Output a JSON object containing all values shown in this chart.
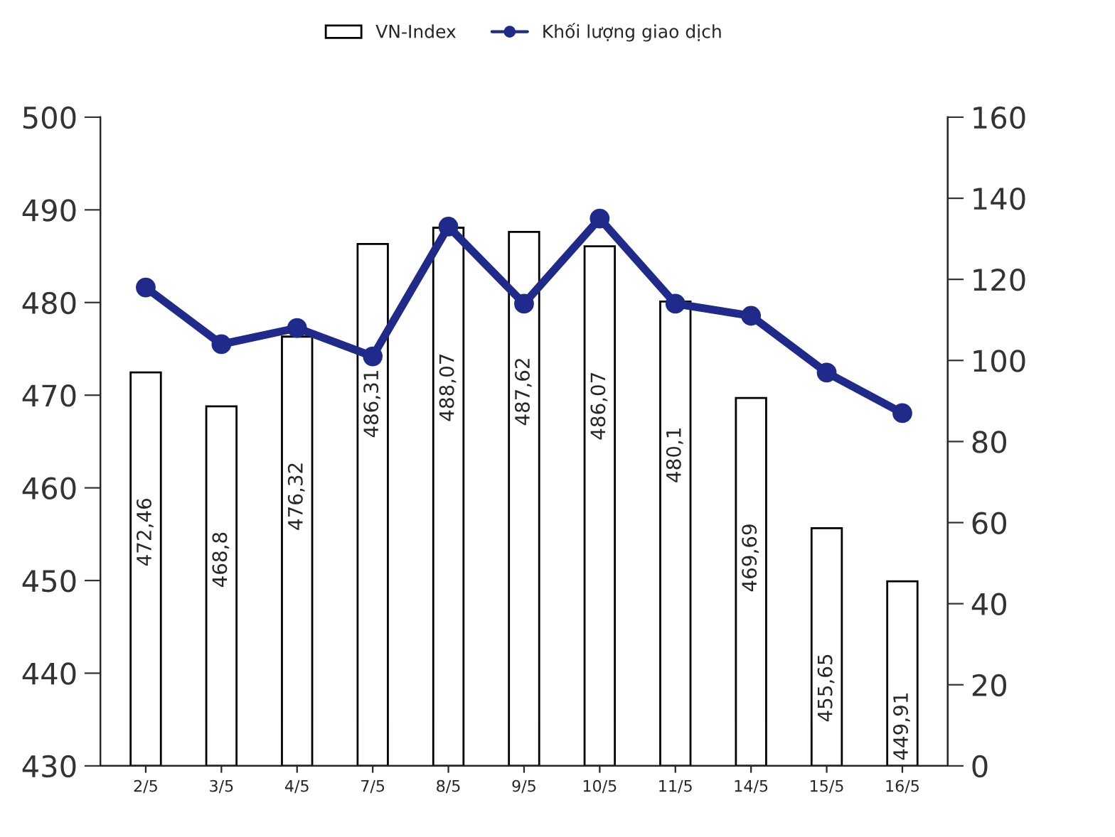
{
  "chart_data": {
    "type": "bar",
    "categories": [
      "2/5",
      "3/5",
      "4/5",
      "7/5",
      "8/5",
      "9/5",
      "10/5",
      "11/5",
      "14/5",
      "15/5",
      "16/5"
    ],
    "series": [
      {
        "name": "VN-Index",
        "color": "#ffffff",
        "values": [
          472.46,
          468.8,
          476.32,
          486.31,
          488.07,
          487.62,
          486.07,
          480.1,
          469.69,
          455.65,
          449.91
        ],
        "value_labels": [
          "472,46",
          "468,8",
          "476,32",
          "486,31",
          "488,07",
          "487,62",
          "486,07",
          "480,1",
          "469,69",
          "455,65",
          "449,91"
        ]
      },
      {
        "name": "Khối lượng giao dịch",
        "type": "line",
        "axis": "y2",
        "color": "#1f2a8a",
        "values": [
          118,
          104,
          108,
          101,
          133,
          114,
          135,
          114,
          111,
          97,
          87
        ]
      }
    ],
    "ylim": [
      430,
      500
    ],
    "yticks": [
      430,
      440,
      450,
      460,
      470,
      480,
      490,
      500
    ],
    "y2lim": [
      0,
      160
    ],
    "y2ticks": [
      0,
      20,
      40,
      60,
      80,
      100,
      120,
      140,
      160
    ],
    "legend": "top",
    "grid": false,
    "marker": "circle",
    "line_style": "solid"
  }
}
